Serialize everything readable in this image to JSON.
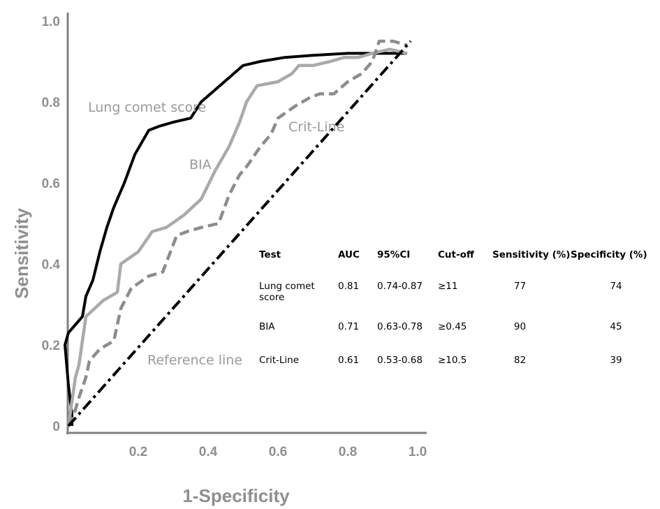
{
  "chart_data": {
    "type": "line",
    "xlabel": "1-Specificity",
    "ylabel": "Sensitivity",
    "xlim": [
      0,
      1
    ],
    "ylim": [
      0,
      1
    ],
    "x_ticks": [
      "0.2",
      "0.4",
      "0.6",
      "0.8",
      "1.0"
    ],
    "y_ticks": [
      "0",
      "0.2",
      "0.4",
      "0.6",
      "0.8",
      "1.0"
    ],
    "colors": {
      "lung": "#000000",
      "bia": "#aaaaaa",
      "crit": "#8c8c8c",
      "reference": "#000000",
      "axis": "#7f7f7f",
      "text": "#8f8f8f"
    },
    "series": [
      {
        "name": "Lung comet score",
        "style": "solid",
        "points": [
          [
            0.01,
            0.0
          ],
          [
            0.01,
            0.03
          ],
          [
            0.0,
            0.1
          ],
          [
            -0.01,
            0.2
          ],
          [
            0.0,
            0.23
          ],
          [
            0.04,
            0.27
          ],
          [
            0.05,
            0.32
          ],
          [
            0.07,
            0.36
          ],
          [
            0.09,
            0.43
          ],
          [
            0.11,
            0.49
          ],
          [
            0.13,
            0.54
          ],
          [
            0.16,
            0.6
          ],
          [
            0.19,
            0.67
          ],
          [
            0.23,
            0.73
          ],
          [
            0.26,
            0.74
          ],
          [
            0.3,
            0.75
          ],
          [
            0.35,
            0.76
          ],
          [
            0.38,
            0.8
          ],
          [
            0.42,
            0.83
          ],
          [
            0.46,
            0.86
          ],
          [
            0.5,
            0.89
          ],
          [
            0.55,
            0.9
          ],
          [
            0.62,
            0.91
          ],
          [
            0.7,
            0.915
          ],
          [
            0.8,
            0.92
          ],
          [
            0.9,
            0.92
          ],
          [
            0.97,
            0.92
          ]
        ]
      },
      {
        "name": "BIA",
        "style": "solid",
        "points": [
          [
            0.0,
            0.0
          ],
          [
            0.01,
            0.06
          ],
          [
            0.02,
            0.12
          ],
          [
            0.03,
            0.15
          ],
          [
            0.04,
            0.21
          ],
          [
            0.05,
            0.27
          ],
          [
            0.1,
            0.31
          ],
          [
            0.14,
            0.33
          ],
          [
            0.15,
            0.4
          ],
          [
            0.2,
            0.43
          ],
          [
            0.24,
            0.48
          ],
          [
            0.28,
            0.49
          ],
          [
            0.33,
            0.52
          ],
          [
            0.38,
            0.56
          ],
          [
            0.42,
            0.63
          ],
          [
            0.46,
            0.69
          ],
          [
            0.49,
            0.75
          ],
          [
            0.51,
            0.8
          ],
          [
            0.54,
            0.84
          ],
          [
            0.6,
            0.85
          ],
          [
            0.64,
            0.87
          ],
          [
            0.66,
            0.89
          ],
          [
            0.7,
            0.89
          ],
          [
            0.75,
            0.9
          ],
          [
            0.79,
            0.91
          ],
          [
            0.83,
            0.91
          ],
          [
            0.87,
            0.92
          ],
          [
            0.92,
            0.93
          ],
          [
            0.97,
            0.92
          ]
        ]
      },
      {
        "name": "Crit-Line",
        "style": "dashed",
        "points": [
          [
            0.0,
            0.0
          ],
          [
            0.02,
            0.04
          ],
          [
            0.03,
            0.07
          ],
          [
            0.05,
            0.12
          ],
          [
            0.06,
            0.16
          ],
          [
            0.09,
            0.19
          ],
          [
            0.13,
            0.21
          ],
          [
            0.15,
            0.29
          ],
          [
            0.18,
            0.34
          ],
          [
            0.23,
            0.37
          ],
          [
            0.27,
            0.38
          ],
          [
            0.31,
            0.47
          ],
          [
            0.34,
            0.48
          ],
          [
            0.38,
            0.49
          ],
          [
            0.43,
            0.5
          ],
          [
            0.46,
            0.57
          ],
          [
            0.49,
            0.62
          ],
          [
            0.51,
            0.64
          ],
          [
            0.55,
            0.69
          ],
          [
            0.58,
            0.72
          ],
          [
            0.6,
            0.76
          ],
          [
            0.65,
            0.79
          ],
          [
            0.69,
            0.81
          ],
          [
            0.72,
            0.82
          ],
          [
            0.76,
            0.82
          ],
          [
            0.8,
            0.85
          ],
          [
            0.84,
            0.87
          ],
          [
            0.87,
            0.9
          ],
          [
            0.89,
            0.95
          ],
          [
            0.93,
            0.95
          ],
          [
            0.97,
            0.94
          ]
        ]
      },
      {
        "name": "Reference line",
        "style": "dashdot",
        "points": [
          [
            0.0,
            0.0
          ],
          [
            0.98,
            0.95
          ]
        ]
      }
    ]
  },
  "labels": {
    "lung": "Lung comet score",
    "bia": "BIA",
    "crit": "Crit-Line",
    "reference": "Reference line"
  },
  "table": {
    "headers": [
      "Test",
      "AUC",
      "95%CI",
      "Cut-off",
      "Sensitivity (%)",
      "Specificity (%)"
    ],
    "rows": [
      {
        "test": "Lung comet score",
        "auc": "0.81",
        "ci": "0.74-0.87",
        "cutoff": "≥11",
        "sensitivity": "77",
        "specificity": "74"
      },
      {
        "test": "BIA",
        "auc": "0.71",
        "ci": "0.63-0.78",
        "cutoff": "≥0.45",
        "sensitivity": "90",
        "specificity": "45"
      },
      {
        "test": "Crit-Line",
        "auc": "0.61",
        "ci": "0.53-0.68",
        "cutoff": "≥10.5",
        "sensitivity": "82",
        "specificity": "39"
      }
    ]
  }
}
